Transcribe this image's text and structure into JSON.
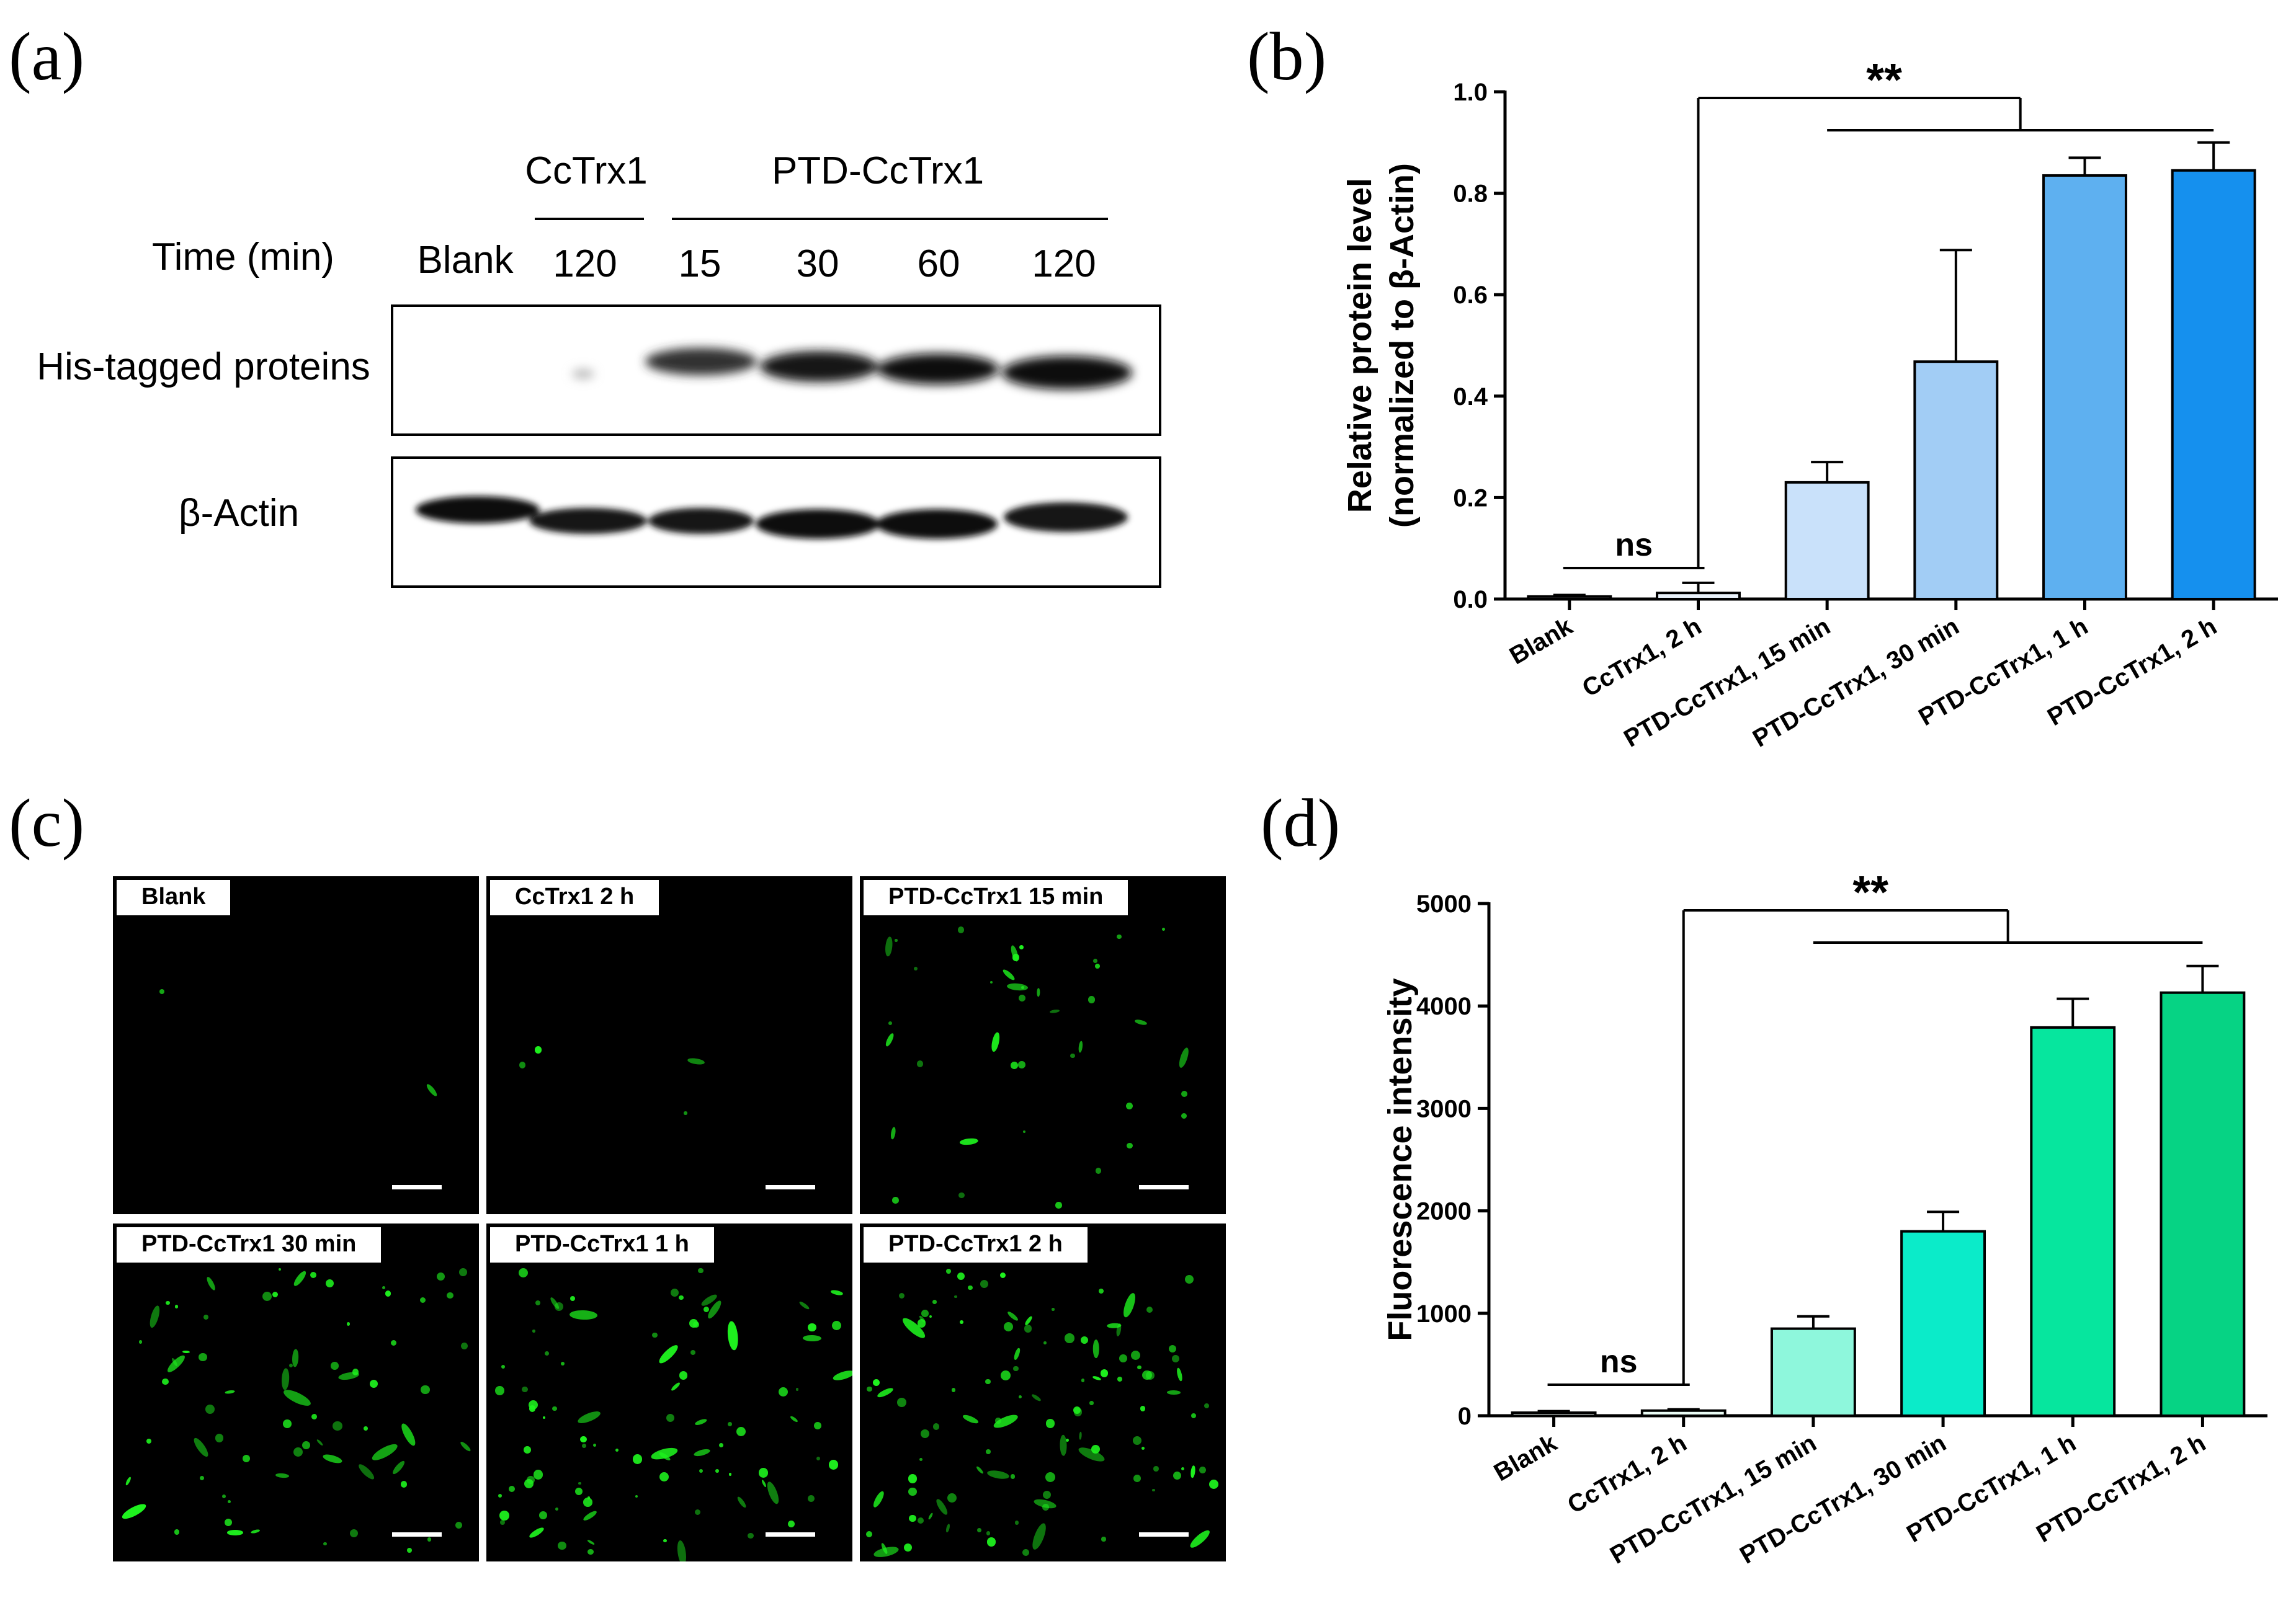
{
  "panels": {
    "a": "(a)",
    "b": "(b)",
    "c": "(c)",
    "d": "(d)"
  },
  "western_blot": {
    "group_ctrx": "CcTrx1",
    "group_ptd": "PTD-CcTrx1",
    "time_label": "Time (min)",
    "lanes": [
      "Blank",
      "120",
      "15",
      "30",
      "60",
      "120"
    ],
    "row_his": "His-tagged proteins",
    "row_actin": "β-Actin"
  },
  "micrographs": {
    "labels": [
      "Blank",
      "CcTrx1  2 h",
      "PTD-CcTrx1 15 min",
      "PTD-CcTrx1 30 min",
      "PTD-CcTrx1 1 h",
      "PTD-CcTrx1 2 h"
    ],
    "fluorescence_color": "#1ef21e"
  },
  "chart_data": [
    {
      "type": "bar",
      "title": "",
      "ylabel_line1": "Relative protein level",
      "ylabel_line2": "(normalized to β-Actin)",
      "xlabel": "",
      "categories": [
        "Blank",
        "CcTrx1, 2 h",
        "PTD-CcTrx1, 15 min",
        "PTD-CcTrx1, 30 min",
        "PTD-CcTrx1, 1 h",
        "PTD-CcTrx1, 2 h"
      ],
      "values": [
        0.005,
        0.012,
        0.23,
        0.468,
        0.835,
        0.845
      ],
      "errors": [
        0.003,
        0.02,
        0.04,
        0.22,
        0.035,
        0.055
      ],
      "colors": [
        "#f4f8fd",
        "#eaf2fb",
        "#c9e1fa",
        "#a2cdf5",
        "#5eb0f0",
        "#1590ee"
      ],
      "ylim": [
        0,
        1.0
      ],
      "yticks": [
        "0.0",
        "0.2",
        "0.4",
        "0.6",
        "0.8",
        "1.0"
      ],
      "yticks_values": [
        0,
        0.2,
        0.4,
        0.6,
        0.8,
        1.0
      ],
      "sig_ns": "ns",
      "sig_main": "**"
    },
    {
      "type": "bar",
      "title": "",
      "ylabel_line1": "Fluorescence intensity",
      "ylabel_line2": "",
      "xlabel": "",
      "categories": [
        "Blank",
        "CcTrx1, 2 h",
        "PTD-CcTrx1, 15 min",
        "PTD-CcTrx1, 30 min",
        "PTD-CcTrx1, 1 h",
        "PTD-CcTrx1, 2 h"
      ],
      "values": [
        30,
        50,
        850,
        1800,
        3790,
        4130
      ],
      "errors": [
        15,
        12,
        120,
        190,
        280,
        260
      ],
      "colors": [
        "#f2fdf9",
        "#eafcf5",
        "#8ef7dc",
        "#0bebc9",
        "#06e69e",
        "#06d384"
      ],
      "ylim": [
        0,
        5000
      ],
      "yticks": [
        "0",
        "1000",
        "2000",
        "3000",
        "4000",
        "5000"
      ],
      "yticks_values": [
        0,
        1000,
        2000,
        3000,
        4000,
        5000
      ],
      "sig_ns": "ns",
      "sig_main": "**"
    }
  ]
}
